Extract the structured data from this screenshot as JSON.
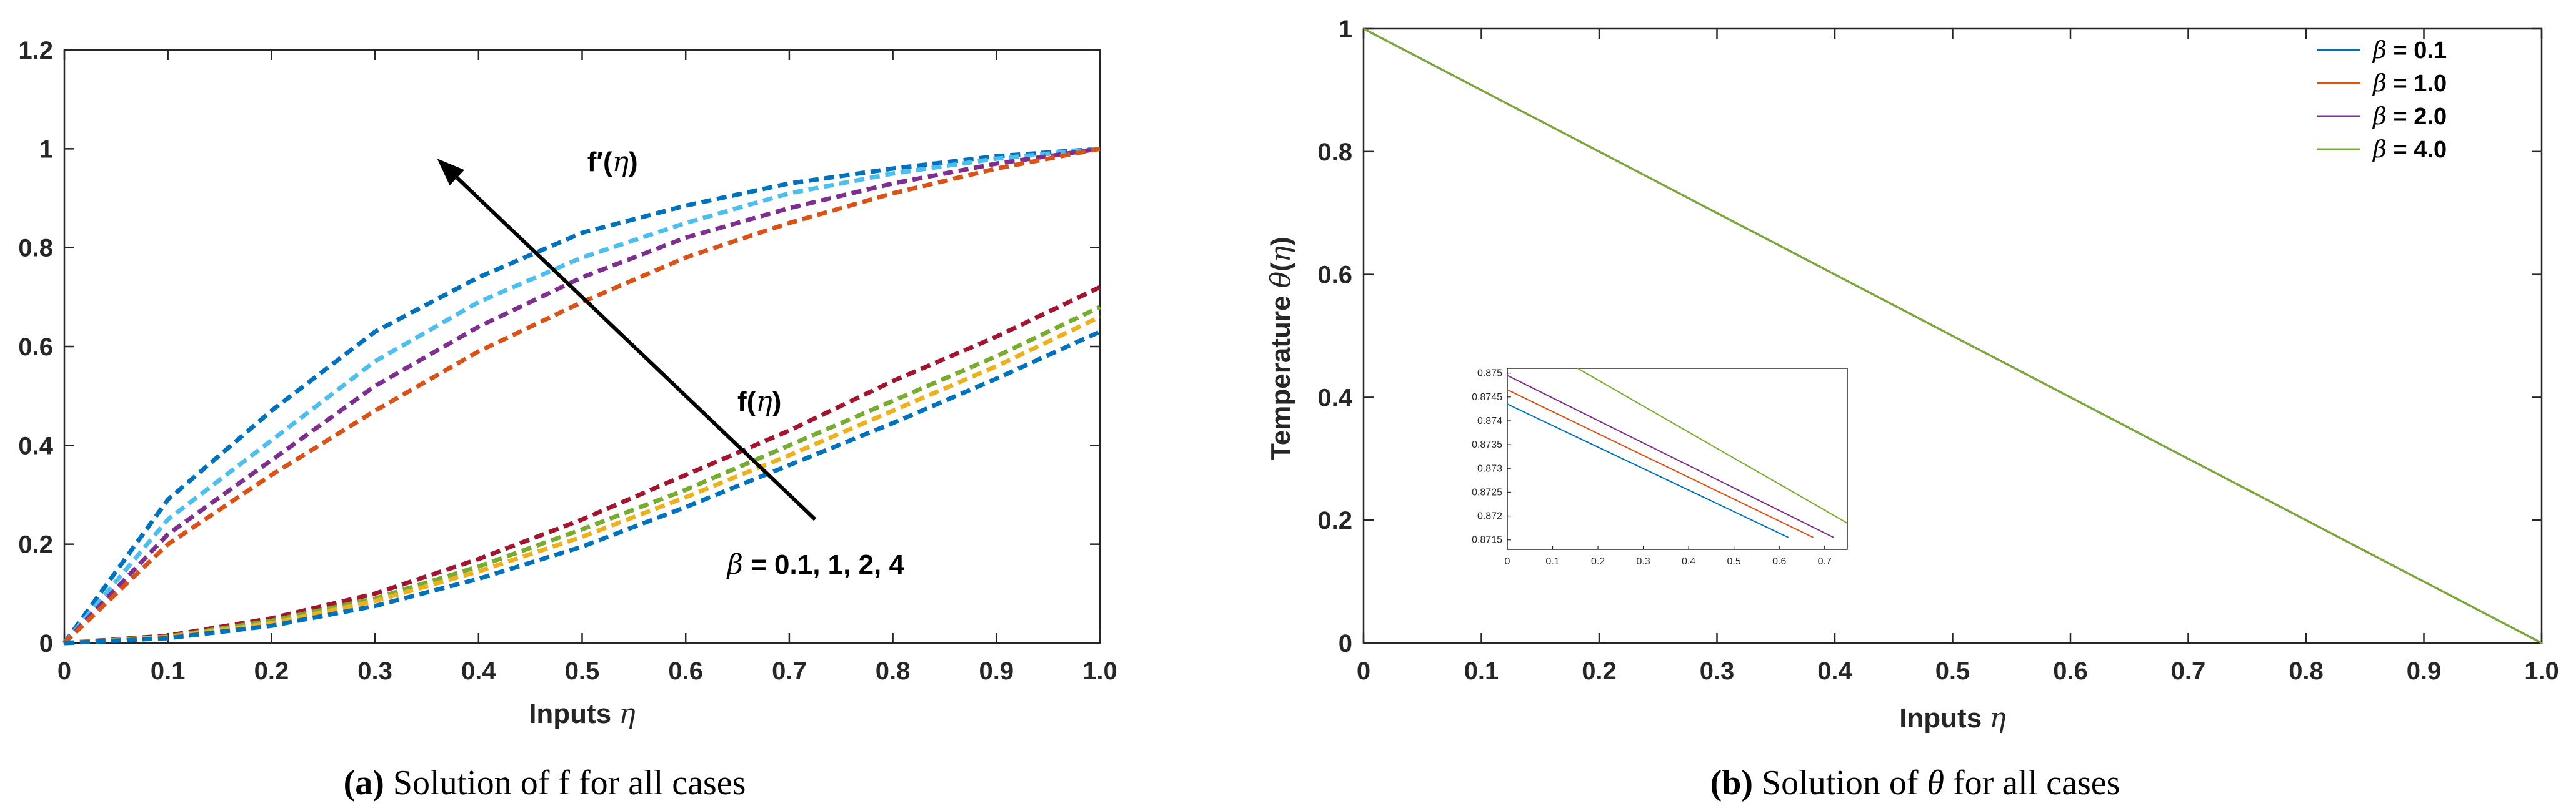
{
  "chart_data": [
    {
      "id": "a",
      "type": "line",
      "caption": {
        "tag": "(a)",
        "text": "Solution of f for all cases"
      },
      "xlabel": "Inputs η",
      "ylabel": "",
      "xlim": [
        0,
        1
      ],
      "ylim": [
        0,
        1.2
      ],
      "xticks": [
        "0",
        "0.1",
        "0.2",
        "0.3",
        "0.4",
        "0.5",
        "0.6",
        "0.7",
        "0.8",
        "0.9",
        "1.0"
      ],
      "yticks": [
        "0",
        "0.2",
        "0.4",
        "0.6",
        "0.8",
        "1",
        "1.2"
      ],
      "grid": false,
      "line_style": "dashed",
      "annotations": {
        "fprime_label": "f′(η)",
        "f_label": "f(η)",
        "beta_label_sym": "β",
        "beta_label_val": " = 0.1, 1, 2, 4"
      },
      "arrow": {
        "from": [
          0.725,
          0.25
        ],
        "to": [
          0.36,
          0.98
        ]
      },
      "x": [
        0,
        0.1,
        0.2,
        0.3,
        0.4,
        0.5,
        0.6,
        0.7,
        0.8,
        0.9,
        1.0
      ],
      "series": [
        {
          "group": "f_prime",
          "color": "#0072BD",
          "values": [
            0,
            0.29,
            0.47,
            0.63,
            0.74,
            0.83,
            0.885,
            0.93,
            0.96,
            0.985,
            1.0
          ]
        },
        {
          "group": "f_prime",
          "color": "#4DBEEE",
          "values": [
            0,
            0.25,
            0.41,
            0.57,
            0.69,
            0.78,
            0.85,
            0.91,
            0.95,
            0.98,
            1.0
          ]
        },
        {
          "group": "f_prime",
          "color": "#7E2F8E",
          "values": [
            0,
            0.22,
            0.37,
            0.52,
            0.64,
            0.74,
            0.82,
            0.88,
            0.93,
            0.97,
            1.0
          ]
        },
        {
          "group": "f_prime",
          "color": "#D95319",
          "values": [
            0,
            0.2,
            0.34,
            0.47,
            0.59,
            0.69,
            0.78,
            0.85,
            0.91,
            0.96,
            1.0
          ]
        },
        {
          "group": "f",
          "color": "#A2142F",
          "values": [
            0,
            0.015,
            0.05,
            0.1,
            0.17,
            0.25,
            0.34,
            0.43,
            0.53,
            0.62,
            0.72
          ]
        },
        {
          "group": "f",
          "color": "#77AC30",
          "values": [
            0,
            0.013,
            0.045,
            0.09,
            0.155,
            0.23,
            0.31,
            0.4,
            0.49,
            0.58,
            0.68
          ]
        },
        {
          "group": "f",
          "color": "#EDB120",
          "values": [
            0,
            0.012,
            0.04,
            0.085,
            0.145,
            0.215,
            0.295,
            0.38,
            0.47,
            0.56,
            0.66
          ]
        },
        {
          "group": "f",
          "color": "#0072BD",
          "values": [
            0,
            0.01,
            0.035,
            0.075,
            0.13,
            0.195,
            0.275,
            0.36,
            0.445,
            0.535,
            0.63
          ]
        }
      ]
    },
    {
      "id": "b",
      "type": "line",
      "caption": {
        "tag": "(b)",
        "text": "Solution of θ for all cases"
      },
      "xlabel": "Inputs η",
      "ylabel": "Temperature θ(η)",
      "xlim": [
        0,
        1
      ],
      "ylim": [
        0,
        1
      ],
      "xticks": [
        "0",
        "0.1",
        "0.2",
        "0.3",
        "0.4",
        "0.5",
        "0.6",
        "0.7",
        "0.8",
        "0.9",
        "1.0"
      ],
      "yticks": [
        "0",
        "0.2",
        "0.4",
        "0.6",
        "0.8",
        "1"
      ],
      "grid": false,
      "legend_position": "top-right",
      "x": [
        0,
        1
      ],
      "series": [
        {
          "name": "β = 0.1",
          "color": "#0072BD",
          "values": [
            1,
            0
          ]
        },
        {
          "name": "β = 1.0",
          "color": "#D95319",
          "values": [
            1,
            0
          ]
        },
        {
          "name": "β = 2.0",
          "color": "#7E2F8E",
          "values": [
            1,
            0
          ]
        },
        {
          "name": "β = 4.0",
          "color": "#77AC30",
          "values": [
            1,
            0
          ]
        }
      ],
      "inset": {
        "xlim": [
          0,
          0.75
        ],
        "ylim": [
          0.8713,
          0.8751
        ],
        "xticks": [
          "0",
          "0.1",
          "0.2",
          "0.3",
          "0.4",
          "0.5",
          "0.6",
          "0.7"
        ],
        "yticks": [
          "0.8715",
          "0.872",
          "0.8725",
          "0.873",
          "0.8735",
          "0.874",
          "0.8745",
          "0.875"
        ],
        "series": [
          {
            "color": "#0072BD",
            "x": [
              0,
              0.62
            ],
            "values": [
              0.87435,
              0.87155
            ]
          },
          {
            "color": "#D95319",
            "x": [
              0,
              0.675
            ],
            "values": [
              0.87465,
              0.87155
            ]
          },
          {
            "color": "#7E2F8E",
            "x": [
              0,
              0.72
            ],
            "values": [
              0.87495,
              0.87155
            ]
          },
          {
            "color": "#77AC30",
            "x": [
              0.155,
              0.75
            ],
            "values": [
              0.8751,
              0.87185
            ]
          }
        ]
      }
    }
  ]
}
